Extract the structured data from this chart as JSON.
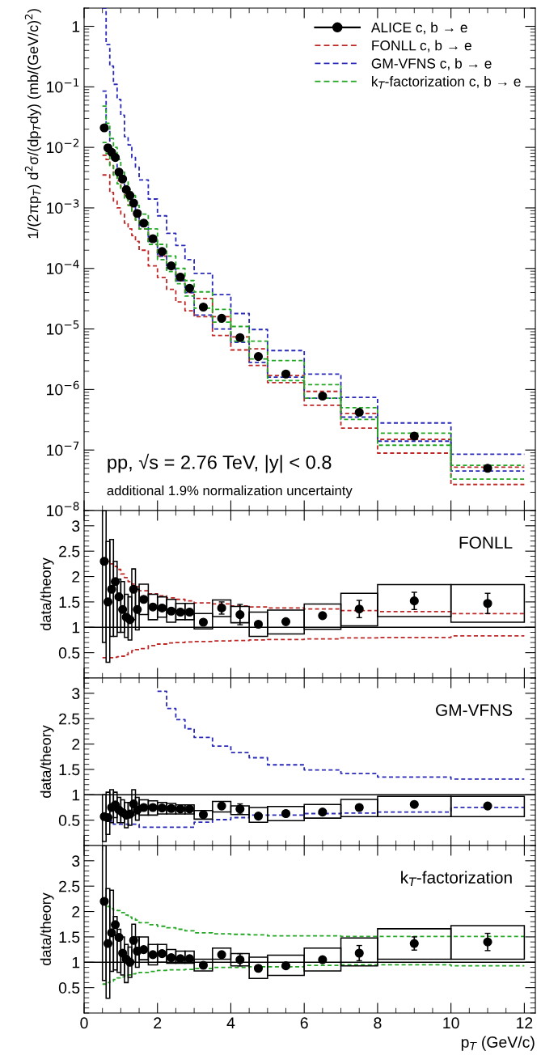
{
  "chart_data": [
    {
      "type": "scatter",
      "ylabel": "1/(2πp$_{T}$) d$^{2}$σ/(dp$_{T}$dy) (mb/(GeV/c)$^{2}$)",
      "log": true,
      "legend": "top right",
      "tick_labels": "y",
      "xlim": [
        0,
        12.3
      ],
      "xticks": [
        0,
        2,
        4,
        6,
        8,
        10,
        12
      ],
      "ylim": [
        1e-08,
        2
      ],
      "yticks": [
        {
          "value": 1e-08,
          "label": "10$^{−8}$"
        },
        {
          "value": 1e-07,
          "label": "10$^{−7}$"
        },
        {
          "value": 1e-06,
          "label": "10$^{−6}$"
        },
        {
          "value": 1e-05,
          "label": "10$^{−5}$"
        },
        {
          "value": 0.0001,
          "label": "10$^{−4}$"
        },
        {
          "value": 0.001,
          "label": "10$^{−3}$"
        },
        {
          "value": 0.01,
          "label": "10$^{−2}$"
        },
        {
          "value": 0.1,
          "label": "10$^{−1}$"
        },
        1
      ],
      "x": [
        0.55,
        0.65,
        0.75,
        0.85,
        0.95,
        1.05,
        1.15,
        1.25,
        1.35,
        1.45,
        1.625,
        1.875,
        2.125,
        2.375,
        2.625,
        2.875,
        3.25,
        3.75,
        4.25,
        4.75,
        5.5,
        6.5,
        7.5,
        9,
        11
      ],
      "annotations": [
        "pp, √s = 2.76 TeV, |y| < 0.8",
        "additional 1.9% normalization uncertainty"
      ],
      "series": [
        {
          "type": "step",
          "name": "FONLL c, b → e",
          "color": "#bf2626",
          "line_style": "dashed",
          "x": [
            0.5,
            0.6,
            0.7,
            0.8,
            0.9,
            1.0,
            1.1,
            1.2,
            1.3,
            1.4,
            1.5,
            1.75,
            2.0,
            2.25,
            2.5,
            2.75,
            3.0,
            3.5,
            4.0,
            4.5,
            5.0,
            6.0,
            7.0,
            8.0,
            10.0,
            12.0
          ],
          "values": [
            0.0074,
            0.0063,
            0.005,
            0.0035,
            0.0028,
            0.002,
            0.0016,
            0.0011,
            0.00089,
            0.00063,
            0.00045,
            0.00025,
            0.00016,
            0.0001,
            6.3e-05,
            4e-05,
            3.2e-05,
            1.6e-05,
            7.4e-06,
            4.7e-06,
            1.7e-06,
            9.3e-07,
            4e-07,
            1.5e-07,
            5.2e-08,
            5.2e-08
          ]
        },
        {
          "type": "step",
          "color": "#bf2626",
          "line_style": "dashed",
          "x": [
            0.5,
            0.6,
            0.7,
            0.8,
            0.9,
            1.0,
            1.1,
            1.2,
            1.3,
            1.4,
            1.5,
            1.75,
            2.0,
            2.25,
            2.5,
            2.75,
            3.0,
            3.5,
            4.0,
            4.5,
            5.0,
            6.0,
            7.0,
            8.0,
            10.0,
            12.0
          ],
          "values": [
            0.0035,
            0.0035,
            0.0018,
            0.0013,
            0.001,
            0.00079,
            0.00056,
            0.00045,
            0.00035,
            0.00028,
            0.0002,
            0.00011,
            7.1e-05,
            4.5e-05,
            2.8e-05,
            2e-05,
            1.6e-05,
            7.8e-06,
            4.5e-06,
            2.5e-06,
            1.3e-06,
            5.5e-07,
            2.3e-07,
            8.9e-08,
            2.7e-08,
            2.7e-08
          ]
        },
        {
          "type": "step",
          "name": "GM-VFNS c, b → e",
          "color": "#2a2ab8",
          "line_style": "dashed",
          "x": [
            0.5,
            0.6,
            0.7,
            0.8,
            0.9,
            1.0,
            1.1,
            1.2,
            1.3,
            1.4,
            1.5,
            1.75,
            2.0,
            2.25,
            2.5,
            2.75,
            3.0,
            3.5,
            4.0,
            4.5,
            5.0,
            6.0,
            7.0,
            8.0,
            10.0,
            12.0
          ],
          "values": [
            2.0,
            0.5,
            0.22,
            0.11,
            0.062,
            0.034,
            0.015,
            0.011,
            0.0068,
            0.0047,
            0.0029,
            0.0014,
            0.00074,
            0.00038,
            0.00024,
            0.00014,
            8.3e-05,
            3.7e-05,
            1.8e-05,
            9.8e-06,
            4.4e-06,
            1.8e-06,
            7.4e-07,
            2.8e-07,
            8.5e-08,
            8.5e-08
          ]
        },
        {
          "type": "step",
          "color": "#2a2ab8",
          "line_style": "dashed",
          "x": [
            0.5,
            0.6,
            0.7,
            0.8,
            0.9,
            1.0,
            1.1,
            1.2,
            1.3,
            1.4,
            1.5,
            1.75,
            2.0,
            2.25,
            2.5,
            2.75,
            3.0,
            3.5,
            4.0,
            4.5,
            5.0,
            6.0,
            7.0,
            8.0,
            10.0,
            12.0
          ],
          "values": [
            0.085,
            0.02,
            0.0089,
            0.0063,
            0.004,
            0.0028,
            0.002,
            0.0014,
            0.0011,
            0.00079,
            0.0005,
            0.00028,
            0.00016,
            0.0001,
            6.3e-05,
            4e-05,
            1.7e-05,
            1e-05,
            6e-06,
            2.8e-06,
            1.6e-06,
            7.2e-07,
            3.5e-07,
            1.4e-07,
            4.5e-08,
            4.5e-08
          ]
        },
        {
          "type": "step",
          "name": "k$_{T}$-factorization c, b → e",
          "color": "#22a822",
          "line_style": "dashed",
          "x": [
            0.5,
            0.6,
            0.7,
            0.8,
            0.9,
            1.0,
            1.1,
            1.2,
            1.3,
            1.4,
            1.5,
            1.75,
            2.0,
            2.25,
            2.5,
            2.75,
            3.0,
            3.5,
            4.0,
            4.5,
            5.0,
            6.0,
            7.0,
            8.0,
            10.0,
            12.0
          ],
          "values": [
            0.048,
            0.025,
            0.014,
            0.01,
            0.0063,
            0.004,
            0.0028,
            0.002,
            0.0016,
            0.0011,
            0.00079,
            0.00045,
            0.00025,
            0.00016,
            0.0001,
            6.3e-05,
            4.1e-05,
            2.1e-05,
            1.1e-05,
            6.3e-06,
            3e-06,
            1.2e-06,
            5e-07,
            1.9e-07,
            5.6e-08,
            5.6e-08
          ]
        },
        {
          "type": "step",
          "color": "#22a822",
          "line_style": "dashed",
          "x": [
            0.5,
            0.6,
            0.7,
            0.8,
            0.9,
            1.0,
            1.1,
            1.2,
            1.3,
            1.4,
            1.5,
            1.75,
            2.0,
            2.25,
            2.5,
            2.75,
            3.0,
            3.5,
            4.0,
            4.5,
            5.0,
            6.0,
            7.0,
            8.0,
            10.0,
            12.0
          ],
          "values": [
            0.012,
            0.0079,
            0.005,
            0.0035,
            0.0025,
            0.002,
            0.0014,
            0.0011,
            0.00089,
            0.00063,
            0.00045,
            0.00025,
            0.00014,
            8.9e-05,
            5.6e-05,
            3.5e-05,
            2.2e-05,
            1.3e-05,
            6.3e-06,
            3.2e-06,
            1.4e-06,
            7.2e-07,
            3.2e-07,
            1.2e-07,
            3.3e-08,
            3.3e-08
          ]
        },
        {
          "name": "ALICE c, b → e",
          "color": "#000000",
          "marker": "circle",
          "values": [
            0.021,
            0.0098,
            0.0083,
            0.0068,
            0.0039,
            0.003,
            0.002,
            0.0016,
            0.0012,
            0.00081,
            0.00056,
            0.00031,
            0.00019,
            0.00011,
            7.2e-05,
            4.7e-05,
            2.3e-05,
            1.5e-05,
            7.2e-06,
            3.5e-06,
            1.8e-06,
            7.8e-07,
            4.2e-07,
            1.7e-07,
            5e-08
          ]
        }
      ]
    },
    {
      "type": "scatter",
      "ylabel": "data/theory",
      "tick_labels": "y",
      "xlim": [
        0,
        12.3
      ],
      "xticks": [
        0,
        2,
        4,
        6,
        8,
        10,
        12
      ],
      "ylim": [
        0,
        3.3
      ],
      "yticks": [
        0.5,
        1,
        1.5,
        2,
        2.5,
        3
      ],
      "x": [
        0.55,
        0.65,
        0.75,
        0.85,
        0.95,
        1.05,
        1.15,
        1.25,
        1.35,
        1.45,
        1.625,
        1.875,
        2.125,
        2.375,
        2.625,
        2.875,
        3.25,
        3.75,
        4.25,
        4.75,
        5.5,
        6.5,
        7.5,
        9,
        11
      ],
      "annotations": [
        "FONLL"
      ],
      "ref_lines": [
        {
          "axis": "y",
          "value": 1,
          "color": "#000000"
        }
      ],
      "series": [
        {
          "type": "step",
          "color": "#bf2626",
          "line_style": "dashed",
          "x": [
            0.5,
            0.6,
            0.7,
            0.8,
            0.9,
            1.0,
            1.1,
            1.2,
            1.3,
            1.4,
            1.5,
            1.75,
            2.0,
            2.25,
            2.5,
            2.75,
            3.0,
            3.5,
            4.0,
            4.5,
            5.0,
            6.0,
            7.0,
            8.0,
            10.0,
            12.0
          ],
          "values": [
            2.36,
            2.3,
            2.25,
            2.2,
            2.14,
            2.05,
            1.98,
            1.9,
            1.85,
            1.8,
            1.72,
            1.66,
            1.62,
            1.58,
            1.55,
            1.52,
            1.48,
            1.46,
            1.42,
            1.4,
            1.38,
            1.36,
            1.33,
            1.31,
            1.27,
            1.27
          ]
        },
        {
          "type": "step",
          "color": "#bf2626",
          "line_style": "dashed",
          "x": [
            0.5,
            0.6,
            0.7,
            0.8,
            0.9,
            1.0,
            1.1,
            1.2,
            1.3,
            1.4,
            1.5,
            1.75,
            2.0,
            2.25,
            2.5,
            2.75,
            3.0,
            3.5,
            4.0,
            4.5,
            5.0,
            6.0,
            7.0,
            8.0,
            10.0,
            12.0
          ],
          "values": [
            0.4,
            0.4,
            0.4,
            0.41,
            0.42,
            0.43,
            0.46,
            0.5,
            0.54,
            0.56,
            0.58,
            0.64,
            0.67,
            0.69,
            0.7,
            0.71,
            0.72,
            0.73,
            0.74,
            0.75,
            0.76,
            0.77,
            0.79,
            0.8,
            0.83,
            0.83
          ]
        },
        {
          "type": "bar",
          "color": "#000000",
          "base": [
            0.7,
            0.31,
            0.82,
            0.82,
            0.9,
            0.9,
            0.8,
            0.75,
            1.15,
            0.95,
            1.25,
            1.15,
            1.2,
            1.1,
            1.15,
            1.15,
            0.97,
            1.21,
            1.09,
            0.82,
            0.87,
            0.96,
            1.03,
            1.21,
            1.1
          ],
          "values": [
            2.6,
            2.38,
            1.91,
            1.48,
            1.05,
            1.0,
            0.85,
            0.85,
            1.0,
            0.8,
            0.6,
            0.5,
            0.4,
            0.45,
            0.32,
            0.32,
            0.3,
            0.33,
            0.32,
            0.48,
            0.47,
            0.5,
            0.64,
            0.63,
            0.74
          ]
        },
        {
          "color": "#000000",
          "marker": "circle",
          "values": [
            2.3,
            1.5,
            1.75,
            1.9,
            1.6,
            1.35,
            1.2,
            1.15,
            1.75,
            1.35,
            1.55,
            1.4,
            1.38,
            1.32,
            1.3,
            1.3,
            1.1,
            1.38,
            1.25,
            1.06,
            1.11,
            1.23,
            1.36,
            1.52,
            1.47
          ],
          "errors": [
            null,
            null,
            null,
            null,
            null,
            null,
            null,
            null,
            null,
            null,
            null,
            null,
            null,
            null,
            null,
            null,
            null,
            0.12,
            0.2,
            null,
            null,
            null,
            0.17,
            0.17,
            0.2
          ]
        }
      ]
    },
    {
      "type": "scatter",
      "ylabel": "data/theory",
      "tick_labels": "y",
      "xlim": [
        0,
        12.3
      ],
      "xticks": [
        0,
        2,
        4,
        6,
        8,
        10,
        12
      ],
      "ylim": [
        0,
        3.3
      ],
      "yticks": [
        0.5,
        1,
        1.5,
        2,
        2.5,
        3
      ],
      "x": [
        0.55,
        0.65,
        0.75,
        0.85,
        0.95,
        1.05,
        1.15,
        1.25,
        1.35,
        1.45,
        1.625,
        1.875,
        2.125,
        2.375,
        2.625,
        2.875,
        3.25,
        3.75,
        4.25,
        4.75,
        5.5,
        6.5,
        7.5,
        9,
        11
      ],
      "annotations": [
        "GM-VFNS"
      ],
      "ref_lines": [
        {
          "axis": "y",
          "value": 1,
          "color": "#000000"
        }
      ],
      "series": [
        {
          "type": "step",
          "color": "#2a2ab8",
          "line_style": "dashed",
          "x": [
            2.0,
            2.25,
            2.5,
            2.75,
            3.0,
            3.5,
            4.0,
            4.5,
            5.0,
            6.0,
            7.0,
            8.0,
            10.0,
            12.0
          ],
          "values": [
            3.04,
            2.7,
            2.48,
            2.3,
            2.13,
            1.96,
            1.83,
            1.73,
            1.59,
            1.49,
            1.42,
            1.35,
            1.31,
            1.31
          ]
        },
        {
          "type": "step",
          "color": "#2a2ab8",
          "line_style": "dashed",
          "x": [
            0.5,
            0.6,
            0.7,
            0.8,
            0.9,
            1.0,
            1.1,
            1.2,
            1.3,
            1.4,
            1.5,
            1.75,
            2.0,
            2.25,
            2.5,
            2.75,
            3.0,
            3.5,
            4.0,
            4.5,
            5.0,
            6.0,
            7.0,
            8.0,
            10.0,
            12.0
          ],
          "values": [
            0.63,
            0.54,
            0.48,
            0.42,
            0.42,
            0.42,
            0.42,
            0.42,
            0.42,
            0.42,
            0.36,
            0.36,
            0.36,
            0.36,
            0.36,
            0.36,
            0.46,
            0.51,
            0.55,
            0.6,
            0.6,
            0.63,
            0.64,
            0.66,
            0.75,
            0.75
          ]
        },
        {
          "type": "bar",
          "color": "#000000",
          "base": [
            0.08,
            0.22,
            0.45,
            0.55,
            0.45,
            0.45,
            0.35,
            0.4,
            0.6,
            0.5,
            0.6,
            0.6,
            0.62,
            0.62,
            0.62,
            0.62,
            0.52,
            0.66,
            0.61,
            0.46,
            0.49,
            0.54,
            0.57,
            0.57,
            0.57
          ],
          "values": [
            0.92,
            0.83,
            0.65,
            0.5,
            0.5,
            0.45,
            0.5,
            0.45,
            0.5,
            0.45,
            0.3,
            0.28,
            0.23,
            0.21,
            0.18,
            0.18,
            0.17,
            0.21,
            0.17,
            0.29,
            0.28,
            0.27,
            0.34,
            0.4,
            0.4
          ]
        },
        {
          "color": "#000000",
          "marker": "circle",
          "values": [
            0.57,
            0.55,
            0.75,
            0.8,
            0.7,
            0.65,
            0.6,
            0.62,
            0.82,
            0.7,
            0.75,
            0.75,
            0.74,
            0.73,
            0.72,
            0.72,
            0.61,
            0.78,
            0.72,
            0.58,
            0.63,
            0.66,
            0.75,
            0.81,
            0.78
          ],
          "errors": [
            null,
            null,
            null,
            null,
            null,
            null,
            null,
            null,
            null,
            null,
            null,
            null,
            null,
            null,
            null,
            null,
            null,
            null,
            0.1,
            null,
            null,
            null,
            null,
            null,
            null
          ]
        }
      ]
    },
    {
      "type": "scatter",
      "ylabel": "data/theory",
      "xlabel": "p$_{T}$ (GeV/c)",
      "xlim": [
        0,
        12.3
      ],
      "xticks": [
        0,
        2,
        4,
        6,
        8,
        10,
        12
      ],
      "ylim": [
        0,
        3.3
      ],
      "yticks": [
        0.5,
        1,
        1.5,
        2,
        2.5,
        3
      ],
      "x": [
        0.55,
        0.65,
        0.75,
        0.85,
        0.95,
        1.05,
        1.15,
        1.25,
        1.35,
        1.45,
        1.625,
        1.875,
        2.125,
        2.375,
        2.625,
        2.875,
        3.25,
        3.75,
        4.25,
        4.75,
        5.5,
        6.5,
        7.5,
        9,
        11
      ],
      "annotations": [
        "k$_{T}$-factorization"
      ],
      "ref_lines": [
        {
          "axis": "y",
          "value": 1,
          "color": "#000000"
        }
      ],
      "series": [
        {
          "type": "step",
          "color": "#22a822",
          "line_style": "dashed",
          "x": [
            0.5,
            0.6,
            0.7,
            0.8,
            0.9,
            1.0,
            1.1,
            1.2,
            1.3,
            1.4,
            1.5,
            1.75,
            2.0,
            2.25,
            2.5,
            2.75,
            3.0,
            3.5,
            4.0,
            4.5,
            5.0,
            6.0,
            7.0,
            8.0,
            10.0,
            12.0
          ],
          "values": [
            2.14,
            2.1,
            2.06,
            2.03,
            2.02,
            1.98,
            1.93,
            1.89,
            1.86,
            1.83,
            1.78,
            1.74,
            1.71,
            1.68,
            1.65,
            1.62,
            1.58,
            1.56,
            1.55,
            1.54,
            1.52,
            1.52,
            1.51,
            1.51,
            1.51,
            1.51
          ]
        },
        {
          "type": "step",
          "color": "#22a822",
          "line_style": "dashed",
          "x": [
            0.5,
            0.6,
            0.7,
            0.8,
            0.9,
            1.0,
            1.1,
            1.2,
            1.3,
            1.4,
            1.5,
            1.75,
            2.0,
            2.25,
            2.5,
            2.75,
            3.0,
            3.5,
            4.0,
            4.5,
            5.0,
            6.0,
            7.0,
            8.0,
            10.0,
            12.0
          ],
          "values": [
            0.57,
            0.6,
            0.63,
            0.66,
            0.69,
            0.71,
            0.73,
            0.75,
            0.77,
            0.78,
            0.8,
            0.82,
            0.84,
            0.85,
            0.85,
            0.86,
            0.88,
            0.9,
            0.9,
            0.91,
            0.91,
            0.94,
            0.95,
            0.95,
            0.93,
            0.93
          ]
        },
        {
          "type": "bar",
          "color": "#000000",
          "base": [
            0.64,
            0.29,
            0.82,
            0.85,
            0.8,
            0.75,
            0.6,
            0.7,
            1.0,
            0.9,
            1.05,
            0.95,
            1.0,
            0.98,
            0.98,
            0.98,
            0.83,
            1.06,
            0.93,
            0.68,
            0.74,
            0.83,
            0.93,
            1.06,
            1.06
          ],
          "values": [
            2.66,
            2.16,
            1.6,
            1.05,
            0.85,
            0.75,
            0.75,
            0.6,
            0.75,
            0.6,
            0.45,
            0.4,
            0.35,
            0.27,
            0.24,
            0.24,
            0.23,
            0.22,
            0.24,
            0.42,
            0.4,
            0.45,
            0.55,
            0.6,
            0.66
          ]
        },
        {
          "color": "#000000",
          "marker": "circle",
          "values": [
            2.2,
            1.37,
            1.58,
            1.74,
            1.49,
            1.18,
            1.06,
            1.0,
            1.43,
            1.22,
            1.25,
            1.15,
            1.17,
            1.09,
            1.07,
            1.07,
            0.94,
            1.15,
            1.05,
            0.88,
            0.93,
            1.05,
            1.18,
            1.37,
            1.4
          ],
          "errors": [
            null,
            null,
            null,
            null,
            null,
            null,
            null,
            null,
            null,
            null,
            null,
            null,
            null,
            null,
            null,
            null,
            null,
            null,
            0.12,
            null,
            null,
            null,
            0.15,
            0.13,
            0.17
          ]
        }
      ]
    }
  ]
}
